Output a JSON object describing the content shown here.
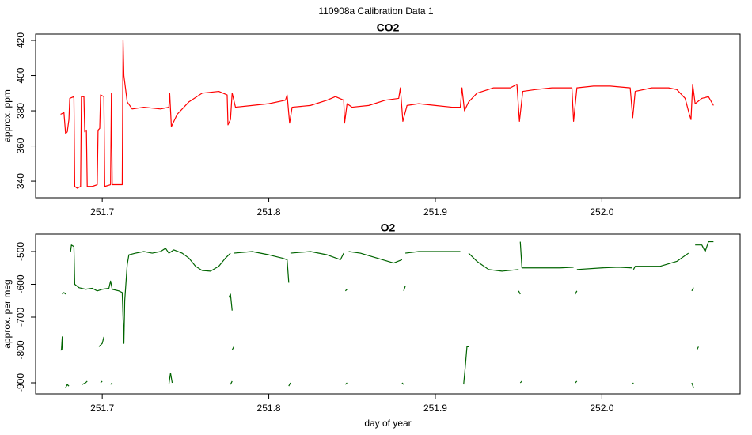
{
  "title": "110908a   Calibration Data 1",
  "chart_data": [
    {
      "type": "line",
      "title": "CO2",
      "ylabel": "approx. ppm",
      "color": "#ff0000",
      "xlim": [
        251.66,
        252.083
      ],
      "ylim": [
        330.6,
        423.6
      ],
      "xticks": [
        {
          "value": 251.7,
          "label": "251.7"
        },
        {
          "value": 251.8,
          "label": "251.8"
        },
        {
          "value": 251.9,
          "label": "251.9"
        },
        {
          "value": 252,
          "label": "252.0"
        }
      ],
      "yticks": [
        340,
        360,
        380,
        400,
        420
      ],
      "x": [
        251.675,
        251.677,
        251.678,
        251.679,
        251.68,
        251.6805,
        251.683,
        251.6835,
        251.685,
        251.687,
        251.6875,
        251.689,
        251.6895,
        251.6905,
        251.691,
        251.694,
        251.697,
        251.6975,
        251.6985,
        251.699,
        251.701,
        251.7015,
        251.705,
        251.7055,
        251.706,
        251.71,
        251.712,
        251.7125,
        251.713,
        251.715,
        251.718,
        251.725,
        251.735,
        251.74,
        251.7405,
        251.7415,
        251.745,
        251.752,
        251.76,
        251.77,
        251.775,
        251.7755,
        251.777,
        251.778,
        251.78,
        251.79,
        251.8,
        251.81,
        251.811,
        251.8125,
        251.814,
        251.825,
        251.835,
        251.84,
        251.845,
        251.8455,
        251.847,
        251.85,
        251.86,
        251.87,
        251.878,
        251.879,
        251.8805,
        251.883,
        251.89,
        251.9,
        251.91,
        251.915,
        251.916,
        251.9175,
        251.92,
        251.925,
        251.935,
        251.945,
        251.949,
        251.9505,
        251.9525,
        251.96,
        251.97,
        251.982,
        251.983,
        251.985,
        251.995,
        252.005,
        252.017,
        252.0185,
        252.02,
        252.03,
        252.04,
        252.045,
        252.05,
        252.0525,
        252.0535,
        252.0545,
        252.056,
        252.06,
        252.064,
        252.067
      ],
      "values": [
        378,
        379,
        367,
        368,
        375,
        387,
        388,
        337,
        336,
        337,
        388,
        388,
        368,
        369,
        337,
        337,
        338,
        369,
        370,
        389,
        388,
        337,
        338,
        390,
        338,
        338,
        338,
        420,
        400,
        385,
        381,
        382,
        381,
        382,
        390,
        371,
        378,
        385,
        390,
        391,
        389,
        372,
        375,
        390,
        382,
        383,
        384,
        386,
        389,
        373,
        382,
        383,
        386,
        388,
        386,
        373,
        384,
        382,
        383,
        386,
        387,
        393,
        374,
        383,
        384,
        383,
        382,
        382,
        393,
        380,
        385,
        390,
        393,
        393,
        395,
        374,
        391,
        392,
        393,
        393,
        374,
        393,
        394,
        394,
        393,
        376,
        391,
        393,
        393,
        392,
        387,
        378,
        375,
        395,
        384,
        387,
        388,
        383
      ]
    },
    {
      "type": "line",
      "title": "O2",
      "ylabel": "approx. per meg",
      "xlabel": "day of year",
      "color": "#006400",
      "xlim": [
        251.66,
        252.083
      ],
      "ylim": [
        -933.7,
        -447
      ],
      "xticks": [
        {
          "value": 251.7,
          "label": "251.7"
        },
        {
          "value": 251.8,
          "label": "251.8"
        },
        {
          "value": 251.9,
          "label": "251.9"
        },
        {
          "value": 252,
          "label": "252.0"
        }
      ],
      "yticks": [
        -900,
        -800,
        -700,
        -600,
        -500
      ],
      "x": [
        251.675,
        251.6755,
        251.676,
        251.6762,
        null,
        251.676,
        251.677,
        251.678,
        null,
        251.678,
        251.679,
        251.68,
        null,
        251.681,
        251.6815,
        251.683,
        251.6835,
        251.686,
        251.69,
        251.694,
        251.697,
        251.7,
        251.704,
        251.705,
        251.706,
        251.71,
        251.712,
        251.713,
        251.7135,
        251.715,
        251.716,
        251.72,
        251.725,
        251.73,
        251.735,
        251.738,
        251.74,
        251.743,
        251.748,
        251.752,
        251.756,
        251.76,
        251.765,
        251.77,
        251.774,
        251.777,
        null,
        251.688,
        251.69,
        251.691,
        null,
        251.698,
        251.7,
        251.701,
        null,
        251.699,
        251.7,
        null,
        251.705,
        251.706,
        null,
        251.74,
        251.741,
        251.742,
        null,
        251.776,
        251.777,
        251.778,
        null,
        251.777,
        251.778,
        null,
        251.778,
        251.779,
        null,
        251.779,
        251.79,
        251.8,
        251.808,
        251.811,
        251.812,
        null,
        251.812,
        251.813,
        null,
        251.813,
        251.825,
        251.835,
        251.843,
        251.845,
        null,
        251.846,
        251.847,
        null,
        251.846,
        251.847,
        null,
        251.848,
        251.855,
        251.865,
        251.875,
        251.88,
        null,
        251.88,
        251.881,
        null,
        251.881,
        251.882,
        null,
        251.882,
        251.89,
        251.905,
        251.915,
        null,
        251.917,
        251.918,
        251.919,
        251.92,
        null,
        251.92,
        251.925,
        251.932,
        251.94,
        251.95,
        null,
        251.95,
        251.951,
        null,
        251.951,
        251.952,
        251.965,
        251.975,
        251.983,
        null,
        251.951,
        251.952,
        null,
        251.984,
        251.985,
        null,
        251.984,
        251.985,
        null,
        251.985,
        252.0,
        252.01,
        252.018,
        null,
        252.018,
        252.019,
        null,
        252.019,
        252.02,
        252.035,
        252.045,
        252.052,
        null,
        252.054,
        252.055,
        null,
        252.054,
        252.055,
        null,
        252.057,
        252.058,
        null,
        252.056,
        252.06,
        252.062,
        252.064,
        252.067
      ],
      "values": [
        -800,
        -800,
        -760,
        -800,
        null,
        -630,
        -625,
        -630,
        null,
        -915,
        -905,
        -910,
        null,
        -500,
        -480,
        -485,
        -600,
        -610,
        -615,
        -612,
        -620,
        -615,
        -612,
        -590,
        -615,
        -620,
        -625,
        -780,
        -650,
        -540,
        -510,
        -505,
        -500,
        -505,
        -500,
        -490,
        -505,
        -495,
        -505,
        -520,
        -545,
        -558,
        -560,
        -545,
        -520,
        -505,
        null,
        -905,
        -900,
        -895,
        null,
        -790,
        -780,
        -760,
        null,
        -900,
        -895,
        null,
        -905,
        -900,
        null,
        -905,
        -870,
        -900,
        null,
        -640,
        -630,
        -680,
        null,
        -905,
        -895,
        null,
        -800,
        -790,
        null,
        -505,
        -500,
        -510,
        -520,
        -525,
        -595,
        null,
        -910,
        -900,
        null,
        -505,
        -500,
        -510,
        -525,
        -505,
        null,
        -620,
        -615,
        null,
        -905,
        -900,
        null,
        -500,
        -505,
        -520,
        -535,
        -525,
        null,
        -900,
        -905,
        null,
        -620,
        -605,
        null,
        -505,
        -500,
        -500,
        -500,
        null,
        -905,
        -850,
        -790,
        -790,
        null,
        -505,
        -530,
        -555,
        -560,
        -555,
        null,
        -620,
        -630,
        null,
        -470,
        -550,
        -550,
        -550,
        -548,
        null,
        -900,
        -895,
        null,
        -630,
        -620,
        null,
        -900,
        -895,
        null,
        -555,
        -550,
        -548,
        -550,
        null,
        -905,
        -900,
        null,
        -555,
        -545,
        -545,
        -530,
        -505,
        null,
        -620,
        -610,
        null,
        -900,
        -915,
        null,
        -800,
        -790,
        null,
        -480,
        -480,
        -500,
        -470,
        -470
      ]
    }
  ]
}
